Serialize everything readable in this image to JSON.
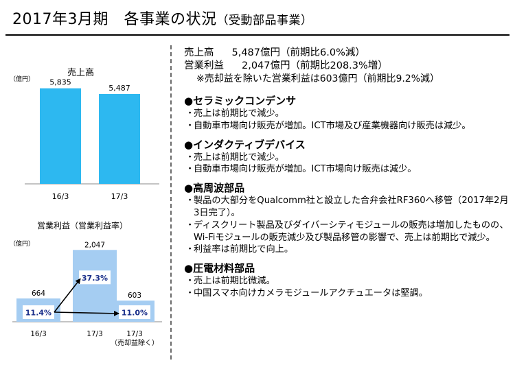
{
  "title": {
    "main": "2017年3月期　各事業の状況",
    "sub": "（受動部品事業）"
  },
  "chart_data": [
    {
      "type": "bar",
      "title": "売上高",
      "unit": "（億円）",
      "categories": [
        "16/3",
        "17/3"
      ],
      "values": [
        5835,
        5487
      ],
      "value_labels": [
        "5,835",
        "5,487"
      ],
      "ylim": [
        0,
        6200
      ],
      "colors": {
        "bar": "#2db8f0"
      }
    },
    {
      "type": "bar",
      "title": "営業利益（営業利益率）",
      "unit": "（億円）",
      "categories": [
        "16/3",
        "17/3",
        "17/3"
      ],
      "category_notes": [
        "",
        "",
        "（売却益除く）"
      ],
      "values": [
        664,
        2047,
        603
      ],
      "value_labels": [
        "664",
        "2,047",
        "603"
      ],
      "margins": [
        "11.4%",
        "37.3%",
        "11.0%"
      ],
      "ylim": [
        0,
        2150
      ],
      "colors": {
        "bar": "#a5cdf2"
      }
    }
  ],
  "summary": {
    "sales": {
      "label": "売上高",
      "value": "5,487億円（前期比6.0%減）"
    },
    "op_profit": {
      "label": "営業利益",
      "value": "2,047億円（前期比208.3%増）"
    },
    "note": "※売却益を除いた営業利益は603億円（前期比9.2%減）"
  },
  "sections": [
    {
      "heading": "●セラミックコンデンサ",
      "items": [
        "売上は前期比で減少。",
        "自動車市場向け販売が増加。ICT市場及び産業機器向け販売は減少。"
      ]
    },
    {
      "heading": "●インダクティブデバイス",
      "items": [
        "売上は前期比で減少。",
        "自動車市場向け販売が増加。ICT市場向け販売は減少。"
      ]
    },
    {
      "heading": "●高周波部品",
      "items": [
        "製品の大部分をQualcomm社と設立した合弁会社RF360へ移管（2017年2月3日完了）。",
        "ディスクリート製品及びダイバーシティモジュールの販売は増加したものの、 Wi-Fiモジュールの販売減少及び製品移管の影響で、売上は前期比で減少。",
        "利益率は前期比で向上。"
      ]
    },
    {
      "heading": "●圧電材料部品",
      "items": [
        "売上は前期比微減。",
        "中国スマホ向けカメラモジュールアクチュエータは堅調。"
      ]
    }
  ]
}
